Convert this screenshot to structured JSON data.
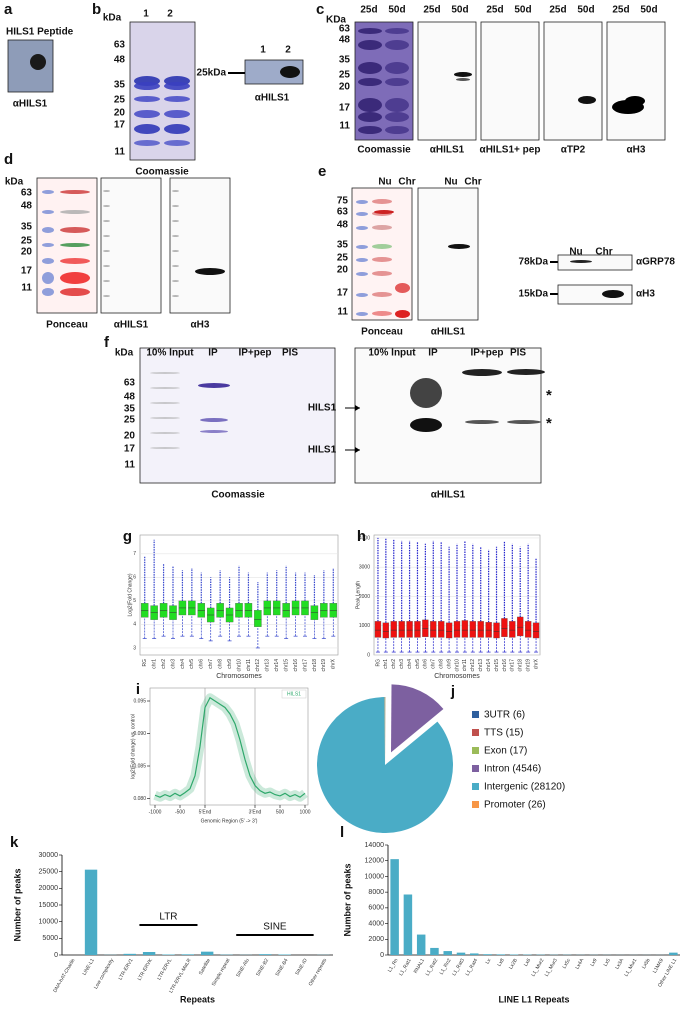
{
  "panels": {
    "a": {
      "letter": "a",
      "title": "HILS1 Peptide",
      "antibody": "αHILS1"
    },
    "b": {
      "letter": "b",
      "unit": "kDa",
      "markers": [
        "63",
        "48",
        "35",
        "25",
        "20",
        "17",
        "11"
      ],
      "lanes": [
        "1",
        "2"
      ],
      "stain": "Coomassie",
      "blot_lanes": [
        "1",
        "2"
      ],
      "blot_marker": "25kDa",
      "antibody": "αHILS1"
    },
    "c": {
      "letter": "c",
      "unit": "KDa",
      "markers": [
        "63",
        "48",
        "35",
        "25",
        "20",
        "17",
        "11"
      ],
      "lanes": [
        "25d",
        "50d"
      ],
      "labels": [
        "Coomassie",
        "αHILS1",
        "αHILS1+ pep",
        "αTP2",
        "αH3"
      ]
    },
    "d": {
      "letter": "d",
      "unit": "kDa",
      "markers": [
        "63",
        "48",
        "35",
        "25",
        "20",
        "17",
        "11"
      ],
      "labels": [
        "Ponceau",
        "αHILS1",
        "αH3"
      ]
    },
    "e": {
      "letter": "e",
      "markers": [
        "75",
        "63",
        "48",
        "35",
        "25",
        "20",
        "17",
        "11"
      ],
      "lanes": [
        "Nu",
        "Chr"
      ],
      "labels": [
        "Ponceau",
        "αHILS1"
      ],
      "side_markers": [
        "78kDa",
        "15kDa"
      ],
      "side_labels": [
        "αGRP78",
        "αH3"
      ]
    },
    "f": {
      "letter": "f",
      "unit": "kDa",
      "markers": [
        "63",
        "48",
        "35",
        "25",
        "20",
        "17",
        "11"
      ],
      "lanes": [
        "10% Input",
        "IP",
        "IP+pep",
        "PIS"
      ],
      "arrows": [
        "HILS1",
        "HILS1"
      ],
      "stars": [
        "*",
        "*"
      ],
      "labels": [
        "Coomassie",
        "αHILS1"
      ]
    }
  },
  "chart_data": [
    {
      "type": "box",
      "letter": "g",
      "xlabel": "Chromosomes",
      "ylabel": "Log2(Fold Change)",
      "color": "#22dd22",
      "whisker_color": "#3344cc",
      "grid": true,
      "categories": [
        "RG",
        "chr1",
        "chr2",
        "chr3",
        "chr4",
        "chr5",
        "chr6",
        "chr7",
        "chr8",
        "chr9",
        "chr10",
        "chr11",
        "chr12",
        "chr13",
        "chr14",
        "chr15",
        "chr16",
        "chr17",
        "chr18",
        "chr19",
        "chrX"
      ],
      "median": [
        4.6,
        4.5,
        4.6,
        4.5,
        4.7,
        4.7,
        4.6,
        4.4,
        4.6,
        4.4,
        4.6,
        4.6,
        4.2,
        4.7,
        4.7,
        4.6,
        4.7,
        4.7,
        4.5,
        4.6,
        4.6
      ],
      "q1": [
        4.3,
        4.2,
        4.3,
        4.2,
        4.4,
        4.4,
        4.3,
        4.1,
        4.3,
        4.1,
        4.3,
        4.3,
        3.9,
        4.4,
        4.4,
        4.3,
        4.4,
        4.4,
        4.2,
        4.3,
        4.3
      ],
      "q3": [
        4.9,
        4.8,
        4.9,
        4.8,
        5.0,
        5.0,
        4.9,
        4.7,
        4.9,
        4.7,
        4.9,
        4.9,
        4.6,
        5.0,
        5.0,
        4.9,
        5.0,
        5.0,
        4.8,
        4.9,
        4.9
      ],
      "whisker_low": [
        3.4,
        3.4,
        3.5,
        3.4,
        3.5,
        3.5,
        3.4,
        3.3,
        3.5,
        3.3,
        3.5,
        3.5,
        3.0,
        3.5,
        3.5,
        3.4,
        3.5,
        3.5,
        3.4,
        3.4,
        3.5
      ],
      "whisker_high": [
        6.9,
        7.6,
        6.6,
        6.5,
        6.3,
        6.4,
        6.2,
        6.0,
        6.3,
        6.0,
        6.5,
        6.2,
        5.8,
        6.2,
        6.3,
        6.5,
        6.2,
        6.2,
        6.1,
        6.3,
        6.4
      ],
      "ylim": [
        2.7,
        7.8
      ],
      "yticks": [
        3,
        4,
        5,
        6,
        7
      ]
    },
    {
      "type": "box",
      "letter": "h",
      "xlabel": "Chromosomes",
      "ylabel": "Peak Length",
      "color": "#ee1111",
      "whisker_color": "#2222cc",
      "grid": true,
      "categories": [
        "RG",
        "chr1",
        "chr2",
        "chr3",
        "chr4",
        "chr5",
        "chr6",
        "chr7",
        "chr8",
        "chr9",
        "chr10",
        "chr11",
        "chr12",
        "chr13",
        "chr14",
        "chr15",
        "chr16",
        "chr17",
        "chr18",
        "chr19",
        "chrX"
      ],
      "median": [
        850,
        800,
        850,
        850,
        850,
        850,
        900,
        850,
        850,
        800,
        850,
        850,
        850,
        850,
        850,
        800,
        900,
        850,
        950,
        850,
        800
      ],
      "q1": [
        600,
        580,
        600,
        600,
        600,
        600,
        620,
        600,
        600,
        580,
        600,
        600,
        600,
        600,
        600,
        580,
        620,
        600,
        650,
        600,
        580
      ],
      "q3": [
        1150,
        1100,
        1150,
        1150,
        1150,
        1150,
        1200,
        1150,
        1150,
        1100,
        1150,
        1180,
        1150,
        1150,
        1120,
        1100,
        1250,
        1150,
        1300,
        1150,
        1100
      ],
      "whisker_low": [
        100,
        100,
        100,
        100,
        100,
        100,
        100,
        100,
        100,
        100,
        100,
        100,
        100,
        100,
        100,
        100,
        100,
        100,
        100,
        100,
        100
      ],
      "whisker_high": [
        4000,
        4000,
        3950,
        3900,
        3900,
        3850,
        3800,
        3900,
        3850,
        3700,
        3800,
        3900,
        3800,
        3700,
        3600,
        3700,
        3900,
        3800,
        3700,
        3800,
        3300
      ],
      "ylim": [
        0,
        4100
      ],
      "yticks": [
        0,
        1000,
        2000,
        3000,
        4000
      ]
    },
    {
      "type": "line",
      "letter": "i",
      "xlabel": "Genomic Region (5' -> 3')",
      "ylabel": "log2(Fold change) vs. control",
      "x": [
        -1000,
        -900,
        -800,
        -700,
        -600,
        -500,
        -400,
        -300,
        -200,
        -100,
        0,
        100,
        200,
        300,
        400,
        500,
        600,
        700,
        800,
        900,
        1000,
        1100,
        1200,
        1300,
        1400,
        1500,
        1600,
        1700,
        1800,
        1900,
        2000
      ],
      "series": [
        {
          "name": "HILS1",
          "color": "#2ea86b",
          "values": [
            0.0805,
            0.0802,
            0.0806,
            0.0803,
            0.0808,
            0.0804,
            0.0809,
            0.0815,
            0.0835,
            0.088,
            0.094,
            0.0955,
            0.095,
            0.0945,
            0.094,
            0.093,
            0.0915,
            0.089,
            0.086,
            0.0835,
            0.082,
            0.0812,
            0.0808,
            0.081,
            0.0806,
            0.0804,
            0.0808,
            0.0803,
            0.0806,
            0.0802,
            0.0808
          ]
        }
      ],
      "xlim": [
        -1100,
        2060
      ],
      "xticks": [
        -1000,
        -500,
        {
          "value": 0,
          "label": "5'End"
        },
        {
          "value": 1000,
          "label": "3'End"
        },
        {
          "value": 1500,
          "label": "500"
        },
        {
          "value": 2000,
          "label": "1000"
        }
      ],
      "ylim": [
        0.079,
        0.097
      ],
      "yticks": [
        {
          "value": 0.08,
          "label": "0.080"
        },
        {
          "value": 0.085,
          "label": "0.085"
        },
        {
          "value": 0.09,
          "label": "0.090"
        },
        {
          "value": 0.095,
          "label": "0.095"
        }
      ]
    },
    {
      "type": "pie",
      "letter": "j",
      "categories": [
        "3UTR (6)",
        "TTS (15)",
        "Exon (17)",
        "Intron (4546)",
        "Intergenic (28120)",
        "Promoter (26)"
      ],
      "values": [
        6,
        15,
        17,
        4546,
        28120,
        26
      ],
      "colors": [
        "#2e5f9e",
        "#c0504d",
        "#9bbb59",
        "#7d60a0",
        "#4aacc6",
        "#f79646"
      ]
    },
    {
      "type": "bar",
      "letter": "k",
      "xlabel": "Repeats",
      "ylabel": "Number of peaks",
      "color": "#4aacc6",
      "annotations": [
        "LTR",
        "SINE"
      ],
      "categories": [
        "DNA-hAT-Charlie",
        "LINE-L1",
        "Low complexity",
        "LTR-ERV1",
        "LTR-ERVK",
        "LTR-ERVL",
        "LTR-ERVL-MaLR",
        "Satellite",
        "Simple repeat",
        "SINE-Alu",
        "SINE-B2",
        "SINE-B4",
        "SINE-ID",
        "Other repeats"
      ],
      "values": [
        0,
        25600,
        50,
        350,
        900,
        150,
        200,
        1000,
        100,
        50,
        250,
        150,
        0,
        50
      ],
      "ylim": [
        0,
        30000
      ],
      "yticks": [
        0,
        5000,
        10000,
        15000,
        20000,
        25000,
        30000
      ]
    },
    {
      "type": "bar",
      "letter": "l",
      "xlabel": "LINE L1 Repeats",
      "ylabel": "Number of peaks",
      "color": "#4aacc6",
      "categories": [
        "L1_Rn",
        "L1_Rat1",
        "RNAL1",
        "L1_Rat2",
        "L1_Rn2",
        "L1_Rat3",
        "L1_Rat4",
        "Lx",
        "Lx8",
        "Lx2B",
        "Lx6",
        "L1_Mur2",
        "L1_Mur3",
        "Lx5c",
        "Lx4A",
        "Lx9",
        "Lx5",
        "Lx3A",
        "L1_Mur1",
        "Lx5b",
        "L1MA9",
        "Other LINE L1"
      ],
      "values": [
        12200,
        7700,
        2600,
        900,
        500,
        300,
        200,
        100,
        80,
        60,
        50,
        40,
        30,
        30,
        20,
        20,
        15,
        10,
        10,
        10,
        10,
        300
      ],
      "ylim": [
        0,
        14000
      ],
      "yticks": [
        0,
        2000,
        4000,
        6000,
        8000,
        10000,
        12000,
        14000
      ]
    }
  ]
}
